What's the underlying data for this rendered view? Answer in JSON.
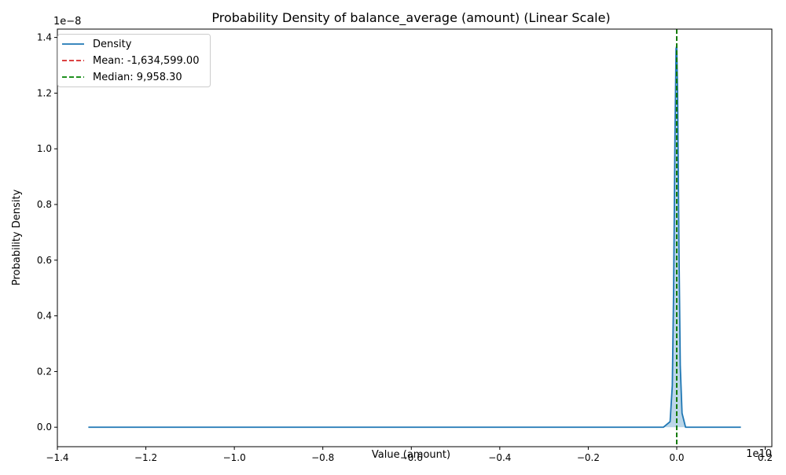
{
  "chart_data": {
    "type": "line",
    "title": "Probability Density of balance_average (amount) (Linear Scale)",
    "xlabel": "Value (amount)",
    "ylabel": "Probability Density",
    "x_scale_label": "1e10",
    "y_scale_label": "1e−8",
    "xlim": [
      -1.4,
      0.215
    ],
    "ylim": [
      -0.07,
      1.43
    ],
    "x_ticks": [
      {
        "value": -1.4,
        "label": "−1.4"
      },
      {
        "value": -1.2,
        "label": "−1.2"
      },
      {
        "value": -1.0,
        "label": "−1.0"
      },
      {
        "value": -0.8,
        "label": "−0.8"
      },
      {
        "value": -0.6,
        "label": "−0.6"
      },
      {
        "value": -0.4,
        "label": "−0.4"
      },
      {
        "value": -0.2,
        "label": "−0.2"
      },
      {
        "value": 0.0,
        "label": "0.0"
      },
      {
        "value": 0.2,
        "label": "0.2"
      }
    ],
    "y_ticks": [
      {
        "value": 0.0,
        "label": "0.0"
      },
      {
        "value": 0.2,
        "label": "0.2"
      },
      {
        "value": 0.4,
        "label": "0.4"
      },
      {
        "value": 0.6,
        "label": "0.6"
      },
      {
        "value": 0.8,
        "label": "0.8"
      },
      {
        "value": 1.0,
        "label": "1.0"
      },
      {
        "value": 1.2,
        "label": "1.2"
      },
      {
        "value": 1.4,
        "label": "1.4"
      }
    ],
    "series": [
      {
        "name": "Density",
        "color": "#1f77b4",
        "points": [
          [
            -1.33,
            0.0
          ],
          [
            -1.0,
            0.0
          ],
          [
            -0.5,
            0.0
          ],
          [
            -0.1,
            0.0
          ],
          [
            -0.03,
            0.0
          ],
          [
            -0.015,
            0.02
          ],
          [
            -0.01,
            0.15
          ],
          [
            -0.007,
            0.5
          ],
          [
            -0.004,
            1.05
          ],
          [
            -0.0015,
            1.36
          ],
          [
            0.0,
            1.37
          ],
          [
            0.002,
            1.2
          ],
          [
            0.005,
            0.65
          ],
          [
            0.008,
            0.22
          ],
          [
            0.012,
            0.05
          ],
          [
            0.02,
            0.0
          ],
          [
            0.1,
            0.0
          ],
          [
            0.145,
            0.0
          ]
        ]
      }
    ],
    "vlines": [
      {
        "name": "Mean: -1,634,599.00",
        "x": -0.0001634599,
        "color": "#d62728",
        "style": "dashed"
      },
      {
        "name": "Median: 9,958.30",
        "x": 9.958e-07,
        "color": "#008000",
        "style": "dashed"
      }
    ],
    "legend_position": "top-left",
    "grid": false
  }
}
